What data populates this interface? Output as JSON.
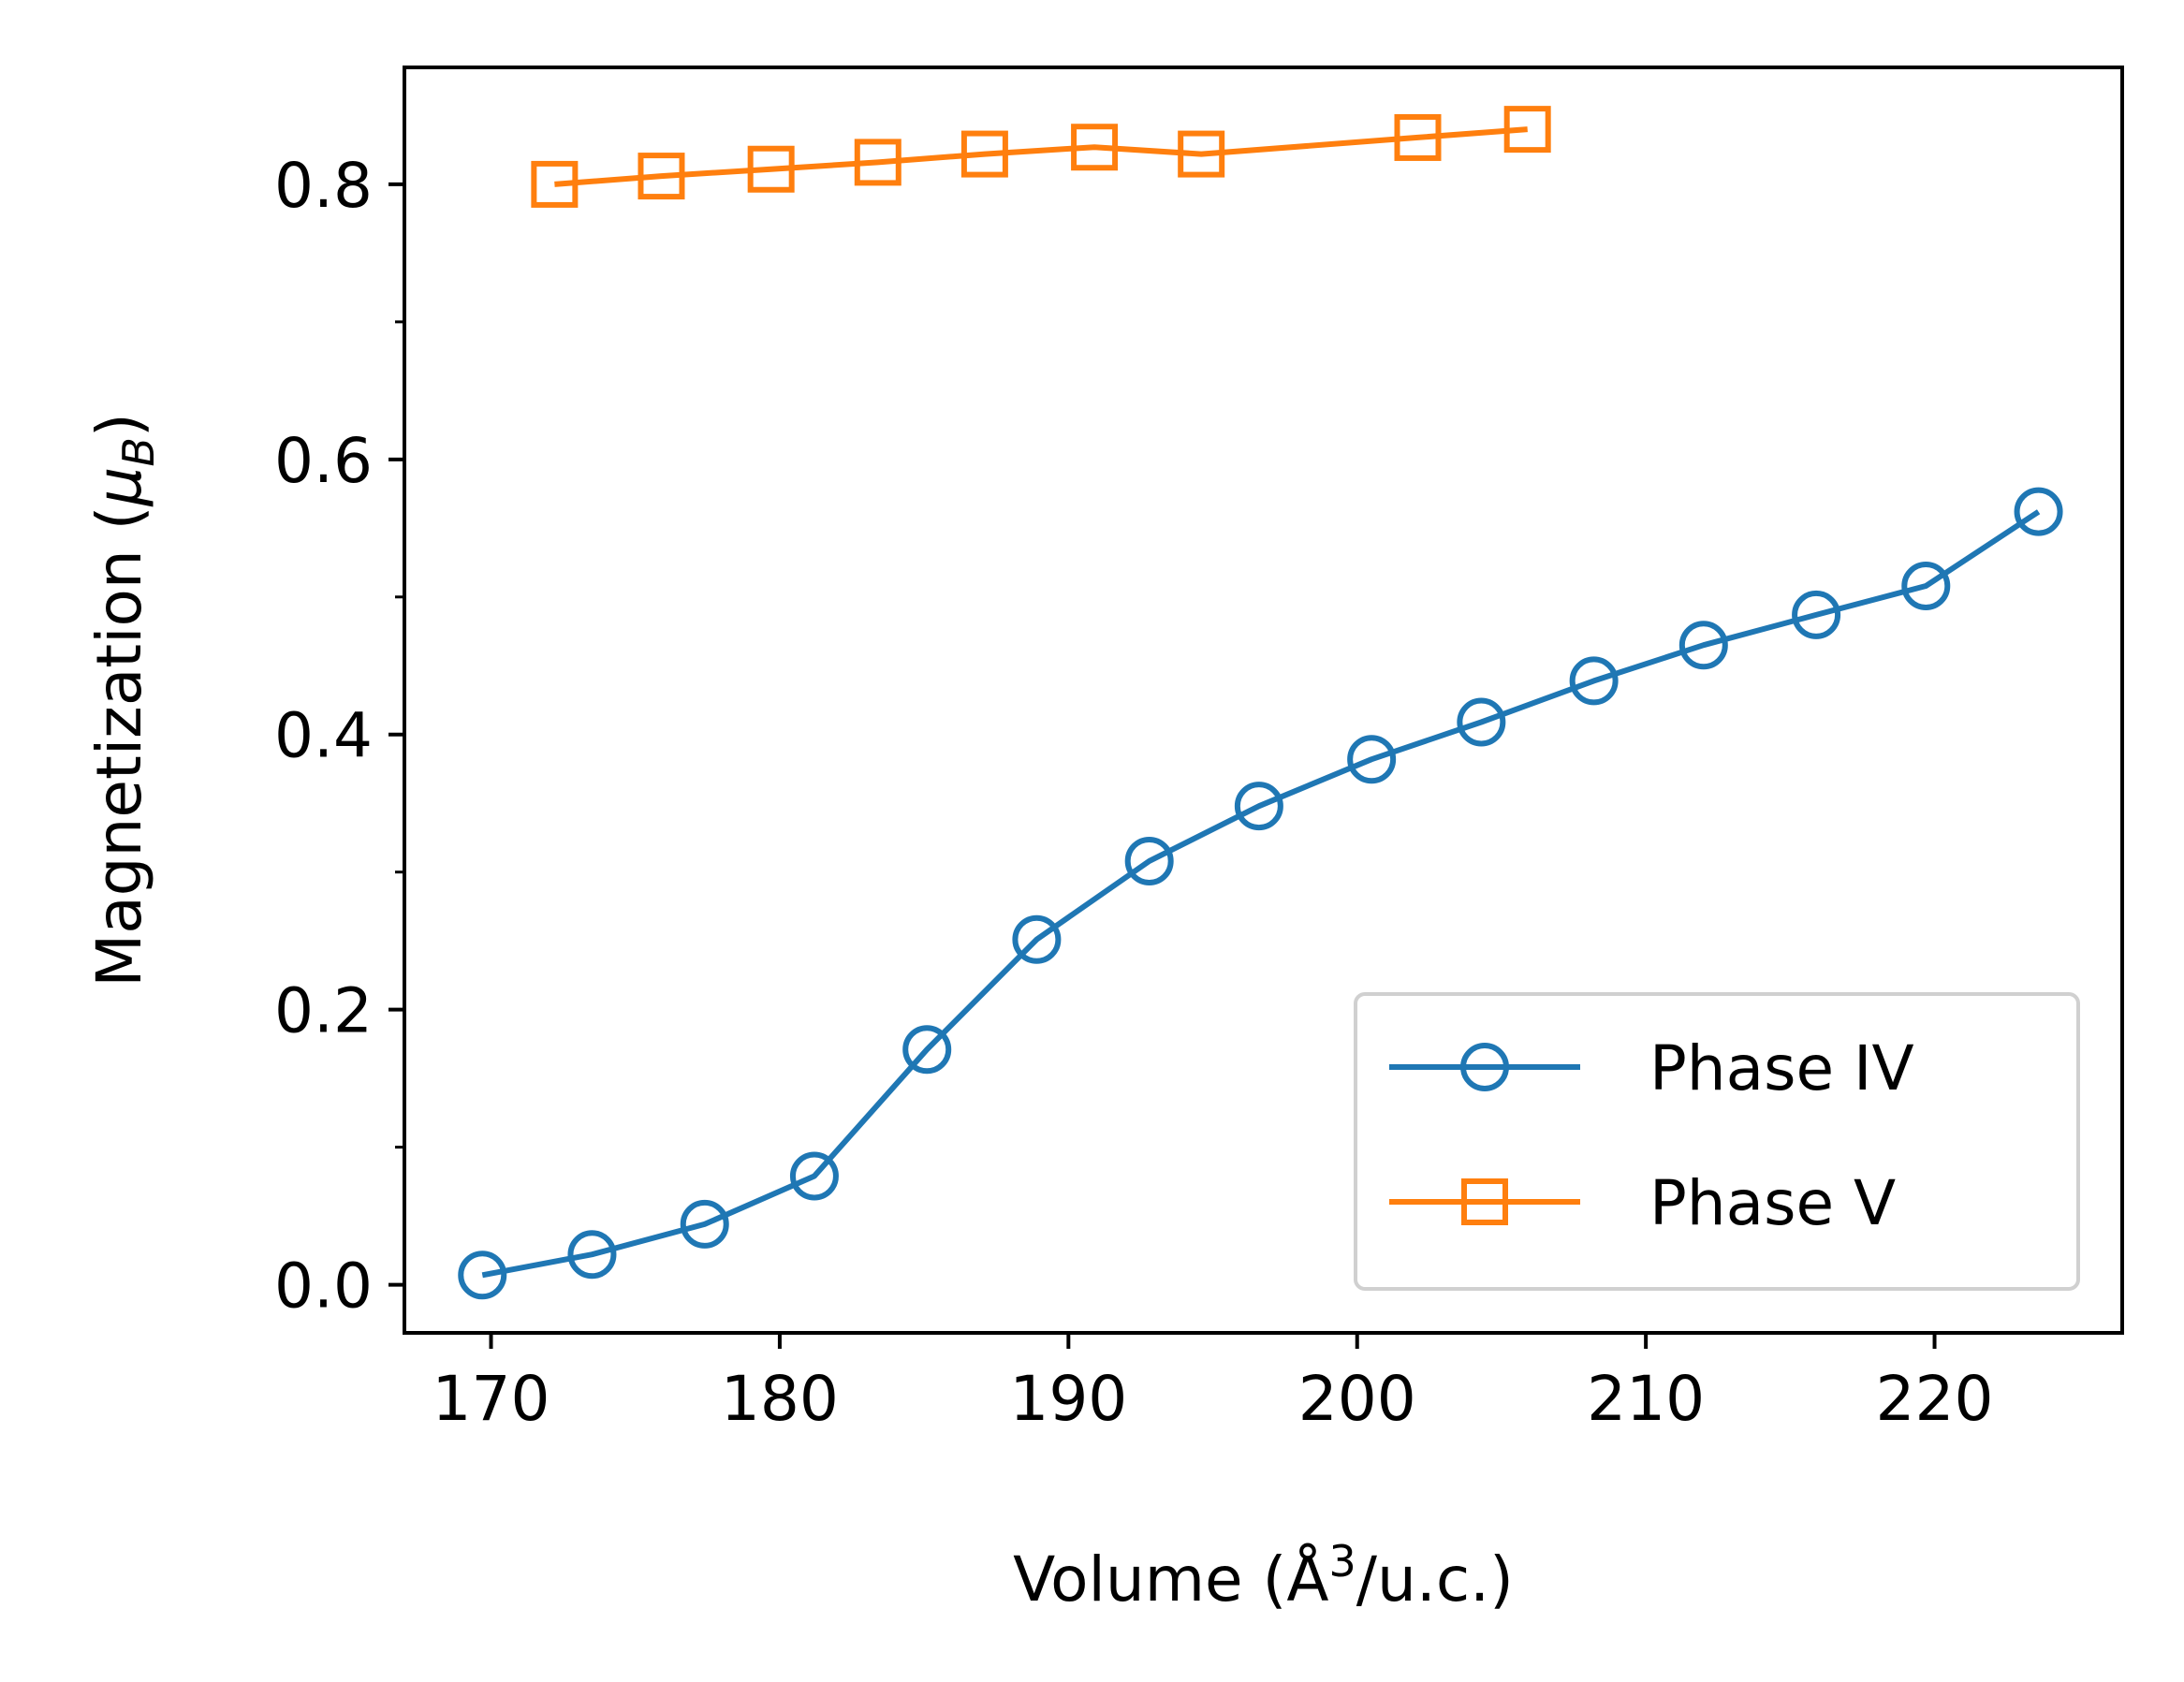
{
  "chart_data": {
    "type": "line",
    "title": "",
    "xlabel": "Volume (Å³/u.c.)",
    "xlabel_parts": {
      "main": "Volume (Å",
      "sup": "3",
      "tail": "/u.c.)"
    },
    "ylabel": "Magnetization (μB)",
    "ylabel_parts": {
      "main": "Magnetization (",
      "mu": "μ",
      "sub": "B",
      "tail": ")"
    },
    "xlim": [
      167.0,
      226.5
    ],
    "ylim": [
      -0.035,
      0.885
    ],
    "xticks": [
      170,
      180,
      190,
      200,
      210,
      220
    ],
    "xtick_labels": [
      "170",
      "180",
      "190",
      "200",
      "210",
      "220"
    ],
    "yticks": [
      0.0,
      0.2,
      0.4,
      0.6,
      0.8
    ],
    "ytick_labels": [
      "0.0",
      "0.2",
      "0.4",
      "0.6",
      "0.8"
    ],
    "yminor_ticks": [
      0.1,
      0.3,
      0.5,
      0.7
    ],
    "grid": false,
    "legend_position": "lower right",
    "series": [
      {
        "name": "Phase IV",
        "color": "#1f77b4",
        "marker": "circle-open",
        "x": [
          169.7,
          173.5,
          177.4,
          181.2,
          185.1,
          188.9,
          192.8,
          196.6,
          200.5,
          204.3,
          208.2,
          212.0,
          215.9,
          219.7,
          223.6
        ],
        "y": [
          0.007,
          0.022,
          0.044,
          0.079,
          0.171,
          0.251,
          0.308,
          0.348,
          0.382,
          0.409,
          0.439,
          0.465,
          0.487,
          0.508,
          0.562
        ]
      },
      {
        "name": "Phase V",
        "color": "#ff7f0e",
        "marker": "square-open",
        "x": [
          172.2,
          175.9,
          179.7,
          183.4,
          187.1,
          190.9,
          194.6,
          202.1,
          205.9
        ],
        "y": [
          0.8,
          0.806,
          0.811,
          0.816,
          0.822,
          0.827,
          0.822,
          0.834,
          0.84
        ]
      }
    ]
  }
}
